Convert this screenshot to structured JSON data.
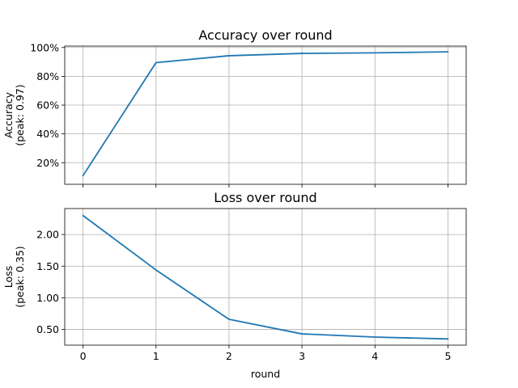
{
  "chart_data": [
    {
      "type": "line",
      "title": "Accuracy over round",
      "xlabel": "",
      "ylabel": [
        "Accuracy",
        "(peak: 0.97)"
      ],
      "x": [
        0,
        1,
        2,
        3,
        4,
        5
      ],
      "xticks": [
        0,
        1,
        2,
        3,
        4,
        5
      ],
      "xticklabels_visible": false,
      "xlim": [
        -0.25,
        5.25
      ],
      "series": [
        {
          "values": [
            0.11,
            0.895,
            0.943,
            0.959,
            0.963,
            0.97
          ],
          "color": "#1f77b4"
        }
      ],
      "ylim": [
        0.05,
        1.01
      ],
      "yticks": [
        0.2,
        0.4,
        0.6,
        0.8,
        1.0
      ],
      "yticklabels": [
        "20%",
        "40%",
        "60%",
        "80%",
        "100%"
      ],
      "grid": true
    },
    {
      "type": "line",
      "title": "Loss over round",
      "xlabel": "round",
      "ylabel": [
        "Loss",
        "(peak: 0.35)"
      ],
      "x": [
        0,
        1,
        2,
        3,
        4,
        5
      ],
      "xticks": [
        0,
        1,
        2,
        3,
        4,
        5
      ],
      "xticklabels_visible": true,
      "xlim": [
        -0.25,
        5.25
      ],
      "series": [
        {
          "values": [
            2.3,
            1.44,
            0.66,
            0.43,
            0.38,
            0.35
          ],
          "color": "#1f77b4"
        }
      ],
      "ylim": [
        0.252,
        2.41
      ],
      "yticks": [
        0.5,
        1.0,
        1.5,
        2.0
      ],
      "yticklabels": [
        "0.50",
        "1.00",
        "1.50",
        "2.00"
      ],
      "grid": true
    }
  ]
}
